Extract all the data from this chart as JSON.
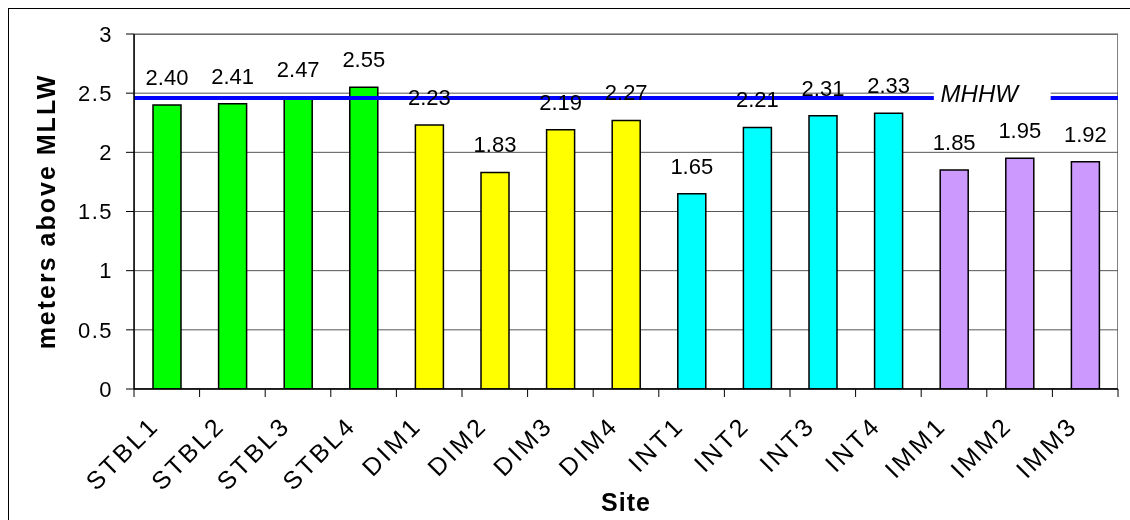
{
  "chart_data": {
    "type": "bar",
    "xlabel": "Site",
    "ylabel": "meters above MLLW",
    "categories": [
      "STBL1",
      "STBL2",
      "STBL3",
      "STBL4",
      "DIM1",
      "DIM2",
      "DIM3",
      "DIM4",
      "INT1",
      "INT2",
      "INT3",
      "INT4",
      "IMM1",
      "IMM2",
      "IMM3"
    ],
    "values": [
      2.4,
      2.41,
      2.47,
      2.55,
      2.23,
      1.83,
      2.19,
      2.27,
      1.65,
      2.21,
      2.31,
      2.33,
      1.85,
      1.95,
      1.92
    ],
    "value_labels": [
      "2.40",
      "2.41",
      "2.47",
      "2.55",
      "2.23",
      "1.83",
      "2.19",
      "2.27",
      "1.65",
      "2.21",
      "2.31",
      "2.33",
      "1.85",
      "1.95",
      "1.92"
    ],
    "colors": [
      "#00ff00",
      "#00ff00",
      "#00ff00",
      "#00ff00",
      "#ffff00",
      "#ffff00",
      "#ffff00",
      "#ffff00",
      "#00ffff",
      "#00ffff",
      "#00ffff",
      "#00ffff",
      "#cc99ff",
      "#cc99ff",
      "#cc99ff"
    ],
    "ylim": [
      0,
      3
    ],
    "yticks": [
      0,
      0.5,
      1,
      1.5,
      2,
      2.5,
      3
    ],
    "grid": "y",
    "ref_lines": [
      {
        "axis": "y",
        "value": 2.46,
        "label": "MHHW",
        "color": "#0000ff"
      }
    ]
  }
}
